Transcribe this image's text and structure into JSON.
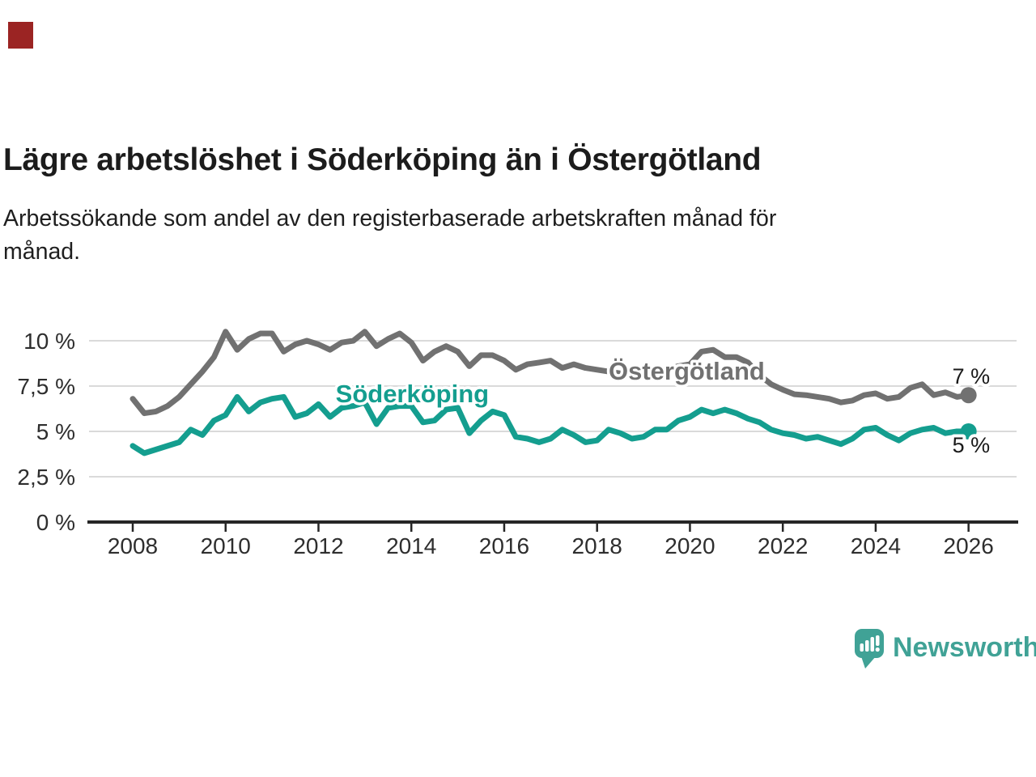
{
  "marker": {
    "color": "#9b2423"
  },
  "header": {
    "title": "Lägre arbetslöshet i Söderköping än i Östergötland",
    "subtitle_lines": [
      "Arbetssökande som andel av den registerbaserade arbetskraften månad för",
      "månad."
    ]
  },
  "chart_data": {
    "type": "line",
    "title": "Lägre arbetslöshet i Söderköping än i Östergötland",
    "subtitle": "Arbetssökande som andel av den registerbaserade arbetskraften månad för månad.",
    "xlabel": "",
    "ylabel": "",
    "grid": true,
    "legend_position": "inline-labels",
    "xlim": [
      2007.05,
      2027.05
    ],
    "ylim": [
      0,
      11.2
    ],
    "x_ticks": [
      2008,
      2010,
      2012,
      2014,
      2016,
      2018,
      2020,
      2022,
      2024,
      2026
    ],
    "y_ticks": [
      {
        "value": 10,
        "label": "10 %"
      },
      {
        "value": 7.5,
        "label": "7,5 %"
      },
      {
        "value": 5,
        "label": "5 %"
      },
      {
        "value": 2.5,
        "label": "2,5 %"
      },
      {
        "value": 0,
        "label": "0 %"
      }
    ],
    "colors": {
      "gridline": "#dadada",
      "axis": "#262626",
      "tick_text": "#2e2e2e"
    },
    "series": [
      {
        "name": "Östergötland",
        "color": "#717171",
        "start": 2008,
        "step": 0.25,
        "end_label": "7 %",
        "end_label_side": "above",
        "label_at": {
          "x": 2019.93,
          "y": 7.86
        },
        "values": [
          6.8,
          6.0,
          6.1,
          6.4,
          6.9,
          7.6,
          8.3,
          9.1,
          10.5,
          9.5,
          10.1,
          10.4,
          10.4,
          9.4,
          9.8,
          10.0,
          9.8,
          9.5,
          9.9,
          10.0,
          10.5,
          9.7,
          10.1,
          10.4,
          9.9,
          8.9,
          9.4,
          9.7,
          9.4,
          8.6,
          9.2,
          9.2,
          8.9,
          8.4,
          8.7,
          8.8,
          8.9,
          8.5,
          8.7,
          8.5,
          8.4,
          8.3,
          8.2,
          8.1,
          8.1,
          8.3,
          8.4,
          8.6,
          8.7,
          9.4,
          9.5,
          9.1,
          9.1,
          8.8,
          8.1,
          7.6,
          7.3,
          7.05,
          7.0,
          6.9,
          6.8,
          6.6,
          6.7,
          7.0,
          7.1,
          6.8,
          6.9,
          7.4,
          7.6,
          7.0,
          7.15,
          6.9,
          7.0
        ]
      },
      {
        "name": "Söderköping",
        "color": "#149e8f",
        "start": 2008,
        "step": 0.25,
        "end_label": "5 %",
        "end_label_side": "below",
        "label_at": {
          "x": 2014.02,
          "y": 6.61
        },
        "values": [
          4.2,
          3.8,
          4.0,
          4.2,
          4.4,
          5.1,
          4.8,
          5.6,
          5.9,
          6.9,
          6.1,
          6.6,
          6.8,
          6.9,
          5.8,
          6.0,
          6.5,
          5.8,
          6.3,
          6.4,
          6.6,
          5.4,
          6.3,
          6.4,
          6.4,
          5.5,
          5.6,
          6.2,
          6.3,
          4.9,
          5.6,
          6.1,
          5.9,
          4.7,
          4.6,
          4.4,
          4.6,
          5.1,
          4.8,
          4.4,
          4.5,
          5.1,
          4.9,
          4.6,
          4.7,
          5.1,
          5.1,
          5.6,
          5.8,
          6.2,
          6.0,
          6.2,
          6.0,
          5.7,
          5.5,
          5.1,
          4.9,
          4.8,
          4.6,
          4.7,
          4.5,
          4.3,
          4.6,
          5.1,
          5.2,
          4.8,
          4.5,
          4.9,
          5.1,
          5.2,
          4.9,
          5.0,
          5.0
        ]
      }
    ]
  },
  "logo": {
    "text": "Newsworthy",
    "color": "#40a296"
  }
}
